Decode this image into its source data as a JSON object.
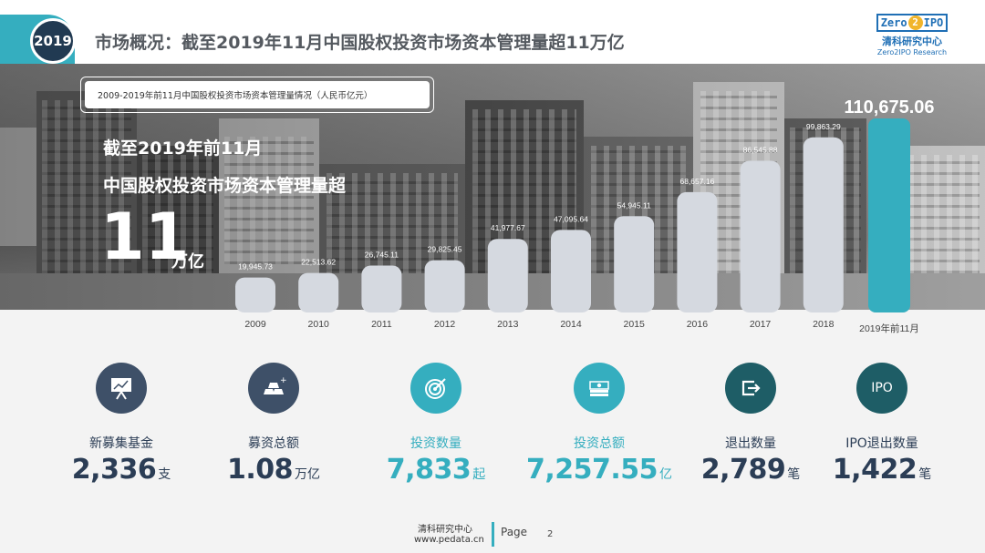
{
  "header": {
    "year_badge": "2019",
    "title": "市场概况：截至2019年11月中国股权投资市场资本管理量超11万亿",
    "logo": {
      "mark_left": "Zero",
      "mark_two": "2",
      "mark_right": "IPO",
      "cn": "清科研究中心",
      "en": "Zero2IPO Research"
    }
  },
  "hero": {
    "chart_caption": "2009-2019年前11月中国股权投资市场资本管理量情况（人民币亿元）",
    "line1": "截至2019年前11月",
    "line2": "中国股权投资市场资本管理量超",
    "big_number": "11",
    "big_unit": "万亿"
  },
  "chart_data": {
    "type": "bar",
    "categories": [
      "2009",
      "2010",
      "2011",
      "2012",
      "2013",
      "2014",
      "2015",
      "2016",
      "2017",
      "2018",
      "2019年前11月"
    ],
    "values": [
      19945.73,
      22513.62,
      26745.11,
      29825.45,
      41977.67,
      47095.64,
      54945.11,
      68657.16,
      86545.88,
      99863.29,
      110675.06
    ],
    "value_labels": [
      "19,945.73",
      "22,513.62",
      "26,745.11",
      "29,825.45",
      "41,977.67",
      "47,095.64",
      "54,945.11",
      "68,657.16",
      "86,545.88",
      "99,863.29",
      "110,675.06"
    ],
    "title": "2009-2019年前11月中国股权投资市场资本管理量情况（人民币亿元）",
    "ylim": [
      0,
      110675.06
    ],
    "grid": false,
    "colors": {
      "bar": "#d5d9e0",
      "highlight": "#35aebf",
      "label": "#ffffff"
    }
  },
  "stats": [
    {
      "icon": "presentation-chart-icon",
      "label": "新募集基金",
      "value": "2,336",
      "unit": "支",
      "tone": "dark"
    },
    {
      "icon": "gold-bars-icon",
      "label": "募资总额",
      "value": "1.08",
      "unit": "万亿",
      "tone": "dark"
    },
    {
      "icon": "target-icon",
      "label": "投资数量",
      "value": "7,833",
      "unit": "起",
      "tone": "teal"
    },
    {
      "icon": "money-stack-icon",
      "label": "投资总额",
      "value": "7,257.55",
      "unit": "亿",
      "tone": "teal"
    },
    {
      "icon": "exit-arrow-icon",
      "label": "退出数量",
      "value": "2,789",
      "unit": "笔",
      "tone": "dark"
    },
    {
      "icon": "ipo-icon",
      "icon_text": "IPO",
      "label": "IPO退出数量",
      "value": "1,422",
      "unit": "笔",
      "tone": "dark"
    }
  ],
  "footer": {
    "org": "清科研究中心",
    "url": "www.pedata.cn",
    "page_label": "Page",
    "page_number": "2"
  },
  "colors": {
    "dark": "#2b3d55",
    "teal": "#35aebf",
    "icon_dark": "#3e5068",
    "icon_teal": "#35aebf",
    "icon_deepteal": "#1e5d66"
  }
}
